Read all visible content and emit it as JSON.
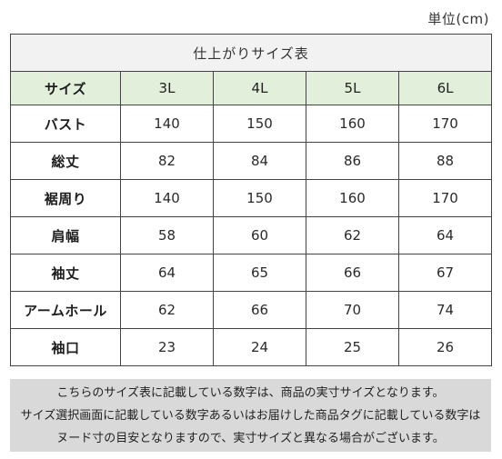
{
  "unit_label": "単位(cm)",
  "table": {
    "title": "仕上がりサイズ表",
    "header_label": "サイズ",
    "sizes": [
      "3L",
      "4L",
      "5L",
      "6L"
    ],
    "rows": [
      {
        "label": "バスト",
        "values": [
          "140",
          "150",
          "160",
          "170"
        ]
      },
      {
        "label": "総丈",
        "values": [
          "82",
          "84",
          "86",
          "88"
        ]
      },
      {
        "label": "裾周り",
        "values": [
          "140",
          "150",
          "160",
          "170"
        ]
      },
      {
        "label": "肩幅",
        "values": [
          "58",
          "60",
          "62",
          "64"
        ]
      },
      {
        "label": "袖丈",
        "values": [
          "64",
          "65",
          "66",
          "67"
        ]
      },
      {
        "label": "アームホール",
        "values": [
          "62",
          "66",
          "70",
          "74"
        ]
      },
      {
        "label": "袖口",
        "values": [
          "23",
          "24",
          "25",
          "26"
        ]
      }
    ],
    "colors": {
      "title_bg": "#f2f2f2",
      "header_bg": "#e2efda",
      "border": "#444444"
    }
  },
  "note": {
    "lines": [
      "こちらのサイズ表に記載している数字は、商品の実寸サイズとなります。",
      "サイズ選択画面に記載している数字あるいはお届けした商品タグに記載している数字は",
      "ヌード寸の目安となりますので、実寸サイズと異なる場合がございます。"
    ],
    "background": "#d9d9d9"
  }
}
